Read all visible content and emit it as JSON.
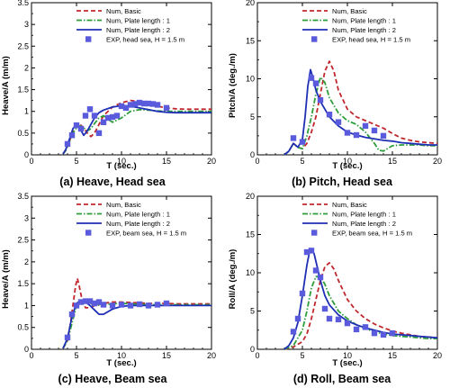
{
  "chart_data": [
    {
      "type": "line",
      "title": "(a) Heave, Head sea",
      "xlabel": "T (sec.)",
      "ylabel": "Heave/A (m/m)",
      "xlim": [
        0,
        20
      ],
      "ylim": [
        0,
        3.5
      ],
      "xticks": [
        "0",
        "5",
        "10",
        "15",
        "20"
      ],
      "yticks": [
        "0",
        "0.5",
        "1",
        "1.5",
        "2",
        "2.5",
        "3",
        "3.5"
      ],
      "legend_position": "top-right",
      "series": [
        {
          "name": "Num, Basic",
          "color": "#c0272d",
          "dash": "dashed",
          "x": [
            3.5,
            3.8,
            4.2,
            4.6,
            5.0,
            5.4,
            5.8,
            6.2,
            6.6,
            7.0,
            7.5,
            8.0,
            9.0,
            10.0,
            11.0,
            12.0,
            13.0,
            14.0,
            15.0,
            16.0,
            17.0,
            18.0,
            19.0,
            20.0
          ],
          "y": [
            0.02,
            0.1,
            0.3,
            0.55,
            0.68,
            0.7,
            0.62,
            0.5,
            0.42,
            0.5,
            0.7,
            0.9,
            1.1,
            1.2,
            1.25,
            1.22,
            1.17,
            1.12,
            1.08,
            1.06,
            1.05,
            1.05,
            1.05,
            1.05
          ]
        },
        {
          "name": "Num, Plate length : 1",
          "color": "#2e9e3a",
          "dash": "dashdot",
          "x": [
            3.5,
            3.8,
            4.2,
            4.6,
            5.0,
            5.4,
            5.8,
            6.2,
            6.6,
            7.0,
            7.5,
            8.0,
            8.5,
            9.0,
            10.0,
            11.0,
            12.0,
            13.0,
            14.0,
            15.0,
            16.0,
            17.0,
            18.0,
            19.0,
            20.0
          ],
          "y": [
            0.02,
            0.1,
            0.3,
            0.5,
            0.62,
            0.67,
            0.62,
            0.55,
            0.6,
            0.72,
            0.85,
            0.9,
            0.82,
            0.75,
            0.85,
            1.0,
            1.04,
            1.03,
            1.01,
            1.0,
            1.0,
            1.0,
            1.0,
            1.0,
            1.0
          ]
        },
        {
          "name": "Num, Plate length : 2",
          "color": "#1f2fb5",
          "dash": "solid",
          "x": [
            3.5,
            3.8,
            4.2,
            4.6,
            5.0,
            5.4,
            5.8,
            6.2,
            6.6,
            7.0,
            7.5,
            8.0,
            9.0,
            10.0,
            11.0,
            12.0,
            13.0,
            14.0,
            15.0,
            16.0,
            17.0,
            18.0,
            19.0,
            20.0
          ],
          "y": [
            0.02,
            0.12,
            0.35,
            0.6,
            0.7,
            0.6,
            0.45,
            0.55,
            0.7,
            0.85,
            0.97,
            1.03,
            1.1,
            1.13,
            1.12,
            1.08,
            1.04,
            1.0,
            0.98,
            0.97,
            0.97,
            0.97,
            0.97,
            0.97
          ]
        },
        {
          "name": "EXP, head sea, H = 1.5 m",
          "color": "#5a5adc",
          "marker": "square",
          "x": [
            4,
            4.5,
            5,
            5.5,
            6,
            6.5,
            7,
            7.5,
            8,
            8.5,
            9,
            9.5,
            10,
            10.5,
            11,
            11.5,
            12,
            12.5,
            13,
            13.5,
            14,
            15
          ],
          "y": [
            0.25,
            0.45,
            0.68,
            0.6,
            0.9,
            1.05,
            0.9,
            0.5,
            0.75,
            0.85,
            0.87,
            0.9,
            1.12,
            1.08,
            1.15,
            1.17,
            1.2,
            1.18,
            1.18,
            1.17,
            1.15,
            1.08
          ]
        }
      ]
    },
    {
      "type": "line",
      "title": "(b) Pitch, Head sea",
      "xlabel": "T (sec.)",
      "ylabel": "Pitch/A (deg./m)",
      "xlim": [
        0,
        20
      ],
      "ylim": [
        0,
        20
      ],
      "xticks": [
        "0",
        "5",
        "10",
        "15",
        "20"
      ],
      "yticks": [
        "0",
        "5",
        "10",
        "15",
        "20"
      ],
      "legend_position": "top-right",
      "series": [
        {
          "name": "Num, Basic",
          "color": "#c0272d",
          "dash": "dashed",
          "x": [
            3.0,
            3.5,
            4.0,
            4.5,
            5.0,
            5.5,
            6.0,
            6.5,
            7.0,
            7.5,
            8.0,
            8.5,
            9.0,
            10.0,
            11.0,
            12.0,
            13.0,
            14.0,
            15.0,
            16.0,
            17.0,
            18.0,
            19.0,
            20.0
          ],
          "y": [
            0,
            0.5,
            1.5,
            1.0,
            0.8,
            1.5,
            3.0,
            5.0,
            8.0,
            11.0,
            12.3,
            11.0,
            8.5,
            6.0,
            5.0,
            4.5,
            4.0,
            3.5,
            2.8,
            2.2,
            1.9,
            1.7,
            1.6,
            1.5
          ]
        },
        {
          "name": "Num, Plate length : 1",
          "color": "#2e9e3a",
          "dash": "dashdot",
          "x": [
            3.0,
            3.5,
            4.0,
            4.5,
            5.0,
            5.5,
            6.0,
            6.5,
            7.0,
            7.5,
            8.0,
            9.0,
            10.0,
            11.0,
            12.0,
            13.0,
            13.5,
            14.0,
            15.0,
            16.0,
            17.0,
            18.0,
            19.0,
            20.0
          ],
          "y": [
            0,
            0.5,
            1.5,
            1.0,
            0.8,
            2.5,
            5.0,
            8.0,
            10.2,
            9.5,
            7.5,
            5.5,
            4.5,
            4.0,
            3.0,
            1.5,
            0.6,
            0.5,
            1.2,
            1.3,
            1.3,
            1.3,
            1.2,
            1.2
          ]
        },
        {
          "name": "Num, Plate length : 2",
          "color": "#1f2fb5",
          "dash": "solid",
          "x": [
            3.0,
            3.5,
            4.0,
            4.5,
            5.0,
            5.3,
            5.6,
            5.9,
            6.2,
            6.5,
            7.0,
            7.5,
            8.0,
            9.0,
            10.0,
            11.0,
            12.0,
            13.0,
            14.0,
            15.0,
            16.0,
            17.0,
            18.0,
            19.0,
            20.0
          ],
          "y": [
            0,
            0.5,
            1.5,
            1.0,
            2.0,
            5.0,
            9.0,
            11.2,
            10.0,
            8.5,
            7.0,
            6.0,
            5.0,
            3.8,
            3.0,
            2.6,
            2.3,
            2.1,
            1.9,
            1.8,
            1.6,
            1.5,
            1.4,
            1.3,
            1.3
          ]
        },
        {
          "name": "EXP, head sea, H = 1.5 m",
          "color": "#5a5adc",
          "marker": "square",
          "x": [
            4,
            5,
            6,
            6.5,
            7,
            8,
            9,
            10,
            11,
            12,
            13,
            14
          ],
          "y": [
            2.2,
            1.7,
            10.1,
            9.4,
            7.2,
            5.3,
            4.3,
            2.9,
            2.6,
            3.8,
            3.2,
            2.5
          ]
        }
      ]
    },
    {
      "type": "line",
      "title": "(c) Heave, Beam sea",
      "xlabel": "T (sec.)",
      "ylabel": "Heave/A (m/m)",
      "xlim": [
        0,
        20
      ],
      "ylim": [
        0,
        3.5
      ],
      "xticks": [
        "0",
        "5",
        "10",
        "15",
        "20"
      ],
      "yticks": [
        "0",
        "0.5",
        "1",
        "1.5",
        "2",
        "2.5",
        "3",
        "3.5"
      ],
      "legend_position": "top-right",
      "series": [
        {
          "name": "Num, Basic",
          "color": "#c0272d",
          "dash": "dashed",
          "x": [
            3.5,
            4.0,
            4.3,
            4.6,
            4.9,
            5.1,
            5.3,
            5.6,
            6.0,
            6.5,
            7.0,
            8.0,
            9.0,
            10.0,
            11.0,
            12.0,
            13.0,
            14.0,
            15.0,
            16.0,
            17.0,
            18.0,
            19.0,
            20.0
          ],
          "y": [
            0.02,
            0.2,
            0.55,
            1.0,
            1.45,
            1.62,
            1.45,
            1.15,
            0.95,
            0.95,
            1.0,
            1.05,
            1.08,
            1.08,
            1.07,
            1.06,
            1.05,
            1.05,
            1.05,
            1.04,
            1.04,
            1.04,
            1.04,
            1.04
          ]
        },
        {
          "name": "Num, Plate length : 1",
          "color": "#2e9e3a",
          "dash": "dashdot",
          "x": [
            3.5,
            4.0,
            4.5,
            5.0,
            5.5,
            6.0,
            6.5,
            7.0,
            8.0,
            9.0,
            10.0,
            11.0,
            12.0,
            13.0,
            14.0,
            15.0,
            16.0,
            17.0,
            18.0,
            19.0,
            20.0
          ],
          "y": [
            0.02,
            0.2,
            0.6,
            1.0,
            1.1,
            1.08,
            1.05,
            1.0,
            1.02,
            1.04,
            1.05,
            1.04,
            1.03,
            1.02,
            1.02,
            1.02,
            1.02,
            1.02,
            1.02,
            1.02,
            1.02
          ]
        },
        {
          "name": "Num, Plate length : 2",
          "color": "#1f2fb5",
          "dash": "solid",
          "x": [
            3.5,
            4.0,
            4.5,
            5.0,
            5.5,
            6.0,
            6.5,
            7.0,
            7.5,
            8.0,
            9.0,
            10.0,
            11.0,
            12.0,
            13.0,
            14.0,
            15.0,
            16.0,
            17.0,
            18.0,
            19.0,
            20.0
          ],
          "y": [
            0.02,
            0.25,
            0.75,
            1.05,
            1.12,
            1.08,
            1.0,
            0.9,
            0.8,
            0.8,
            0.92,
            0.98,
            1.0,
            1.0,
            1.0,
            1.0,
            1.0,
            1.0,
            1.0,
            1.0,
            1.0,
            1.0
          ]
        },
        {
          "name": "EXP, beam sea, H = 1.5 m",
          "color": "#5a5adc",
          "marker": "square",
          "x": [
            4,
            4.5,
            5,
            5.5,
            6,
            6.5,
            7,
            7.5,
            8,
            9,
            10,
            11,
            12,
            13,
            14,
            15
          ],
          "y": [
            0.27,
            0.8,
            1.0,
            1.08,
            1.1,
            1.1,
            1.05,
            1.08,
            1.02,
            1.0,
            1.02,
            1.0,
            1.03,
            1.0,
            1.02,
            1.05
          ]
        }
      ]
    },
    {
      "type": "line",
      "title": "(d) Roll, Beam sea",
      "xlabel": "T (sec.)",
      "ylabel": "Roll/A (deg./m)",
      "xlim": [
        0,
        20
      ],
      "ylim": [
        0,
        20
      ],
      "xticks": [
        "0",
        "5",
        "10",
        "15",
        "20"
      ],
      "yticks": [
        "0",
        "5",
        "10",
        "15",
        "20"
      ],
      "legend_position": "top-right",
      "series": [
        {
          "name": "Num, Basic",
          "color": "#c0272d",
          "dash": "dashed",
          "x": [
            3.0,
            4.0,
            5.0,
            5.5,
            6.0,
            6.5,
            7.0,
            7.5,
            8.0,
            8.5,
            9.0,
            10.0,
            11.0,
            12.0,
            13.0,
            14.0,
            15.0,
            16.0,
            17.0,
            18.0,
            19.0,
            20.0
          ],
          "y": [
            0,
            0.3,
            1.0,
            2.0,
            4.0,
            6.5,
            9.0,
            10.8,
            11.3,
            10.5,
            9.0,
            6.5,
            5.0,
            4.0,
            3.3,
            2.8,
            2.4,
            2.1,
            1.9,
            1.7,
            1.6,
            1.5
          ]
        },
        {
          "name": "Num, Plate length : 1",
          "color": "#2e9e3a",
          "dash": "dashdot",
          "x": [
            3.0,
            4.0,
            5.0,
            5.5,
            6.0,
            6.5,
            7.0,
            7.5,
            8.0,
            9.0,
            10.0,
            11.0,
            12.0,
            13.0,
            14.0,
            15.0,
            16.0,
            17.0,
            18.0,
            19.0,
            20.0
          ],
          "y": [
            0,
            0.5,
            2.5,
            5.0,
            8.0,
            9.5,
            9.5,
            8.5,
            7.0,
            5.0,
            4.0,
            3.2,
            2.7,
            2.3,
            2.0,
            1.8,
            1.7,
            1.6,
            1.5,
            1.4,
            1.4
          ]
        },
        {
          "name": "Num, Plate length : 2",
          "color": "#1f2fb5",
          "dash": "solid",
          "x": [
            3.0,
            3.5,
            4.0,
            4.5,
            5.0,
            5.5,
            5.8,
            6.0,
            6.3,
            6.6,
            7.0,
            7.5,
            8.0,
            9.0,
            10.0,
            11.0,
            12.0,
            13.0,
            14.0,
            15.0,
            16.0,
            17.0,
            18.0,
            19.0,
            20.0
          ],
          "y": [
            0,
            0.5,
            1.5,
            3.5,
            7.0,
            11.0,
            12.8,
            13.0,
            12.5,
            11.0,
            9.0,
            7.0,
            5.8,
            4.5,
            3.7,
            3.2,
            2.8,
            2.5,
            2.2,
            2.0,
            1.9,
            1.8,
            1.7,
            1.6,
            1.5
          ]
        },
        {
          "name": "EXP, beam sea, H = 1.5 m",
          "color": "#5a5adc",
          "marker": "square",
          "x": [
            4,
            4.5,
            5,
            5.5,
            6,
            6.5,
            7,
            7.5,
            8,
            9,
            10,
            11,
            12,
            13,
            14,
            15
          ],
          "y": [
            2.3,
            4.0,
            7.3,
            12.7,
            12.9,
            10.3,
            9.4,
            5.3,
            4.0,
            3.9,
            3.4,
            2.6,
            2.9,
            2.1,
            1.9,
            2.1
          ]
        }
      ]
    }
  ]
}
